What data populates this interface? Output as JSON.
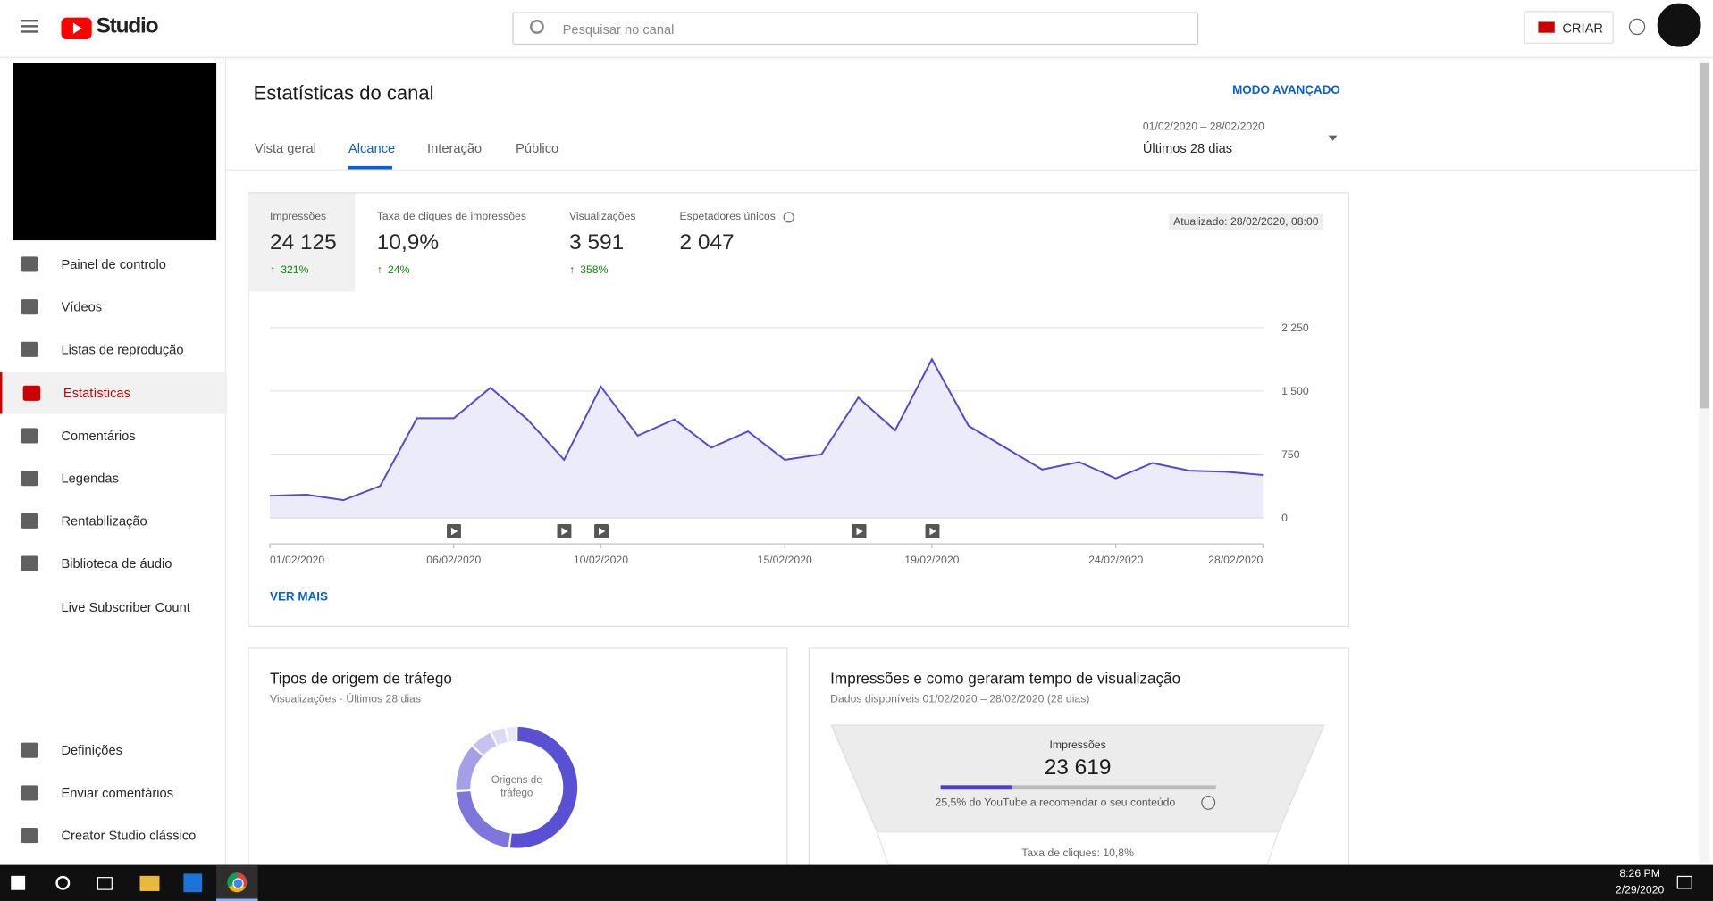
{
  "header": {
    "logo": "Studio",
    "search_placeholder": "Pesquisar no canal",
    "create": "CRIAR"
  },
  "sidebar": {
    "items": [
      {
        "label": "Painel de controlo"
      },
      {
        "label": "Vídeos"
      },
      {
        "label": "Listas de reprodução"
      },
      {
        "label": "Estatísticas",
        "active": true
      },
      {
        "label": "Comentários"
      },
      {
        "label": "Legendas"
      },
      {
        "label": "Rentabilização"
      },
      {
        "label": "Biblioteca de áudio"
      },
      {
        "label": "Live Subscriber Count"
      }
    ],
    "bottom_items": [
      {
        "label": "Definições"
      },
      {
        "label": "Enviar comentários"
      },
      {
        "label": "Creator Studio clássico"
      }
    ]
  },
  "page": {
    "title": "Estatísticas do canal",
    "advanced": "MODO AVANÇADO",
    "tabs": [
      {
        "label": "Vista geral"
      },
      {
        "label": "Alcance",
        "active": true
      },
      {
        "label": "Interação"
      },
      {
        "label": "Público"
      }
    ],
    "date_range": "01/02/2020 – 28/02/2020",
    "period": "Últimos 28 dias"
  },
  "metrics": {
    "items": [
      {
        "label": "Impressões",
        "value": "24 125",
        "change": "321%",
        "active": true
      },
      {
        "label": "Taxa de cliques de impressões",
        "value": "10,9%",
        "change": "24%"
      },
      {
        "label": "Visualizações",
        "value": "3 591",
        "change": "358%"
      },
      {
        "label": "Espetadores únicos",
        "value": "2 047"
      }
    ],
    "updated": "Atualizado: 28/02/2020, 08:00",
    "see_more": "VER MAIS"
  },
  "traffic": {
    "title": "Tipos de origem de tráfego",
    "subtitle": "Visualizações · Últimos 28 dias"
  },
  "funnel": {
    "title": "Impressões e como geraram tempo de visualização",
    "subtitle": "Dados disponíveis 01/02/2020 – 28/02/2020 (28 dias)",
    "label": "Impressões",
    "value": "23 619",
    "note": "25,5% do YouTube a recomendar o seu conteúdo",
    "ctr": "Taxa de cliques: 10,8%"
  },
  "taskbar": {
    "time": "8:26 PM",
    "date": "2/29/2020"
  },
  "chart_data": [
    {
      "type": "area",
      "categories": [
        "01/02/2020",
        null,
        null,
        null,
        null,
        "06/02/2020",
        null,
        null,
        null,
        "10/02/2020",
        null,
        null,
        null,
        null,
        "15/02/2020",
        null,
        null,
        null,
        "19/02/2020",
        null,
        null,
        null,
        null,
        "24/02/2020",
        null,
        null,
        null,
        "28/02/2020"
      ],
      "values": [
        259,
        272,
        207,
        375,
        1177,
        1177,
        1539,
        1164,
        685,
        1552,
        970,
        1164,
        828,
        1021,
        685,
        750,
        1422,
        1034,
        1875,
        1086,
        828,
        569,
        659,
        466,
        647,
        556,
        543,
        504
      ],
      "color": "#5446d3",
      "fill": "#ecebf9",
      "ylim": [
        0,
        2250
      ],
      "yticks": [
        0,
        750,
        {
          "value": 1500,
          "label": "1 500"
        },
        {
          "value": 2250,
          "label": "2 250"
        }
      ],
      "grid": true
    },
    {
      "type": "pie",
      "center_label": "Origens de tráfego",
      "values": [
        52,
        22,
        13,
        6,
        4,
        3
      ],
      "colors": [
        "#5a50d4",
        "#7e75dd",
        "#a49fe7",
        "#c6c2f0",
        "#dcdaf5",
        "#e9e8f8"
      ]
    }
  ]
}
